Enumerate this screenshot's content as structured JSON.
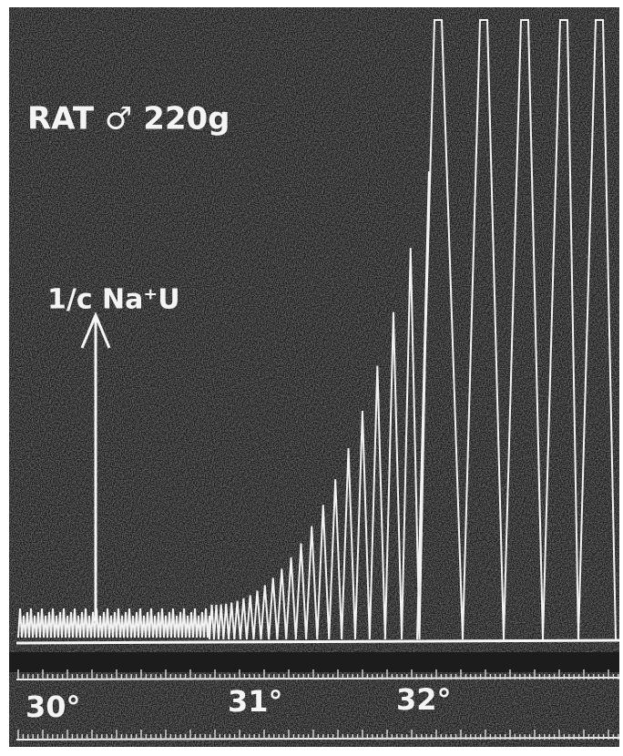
{
  "annotations": {
    "subject": "RAT ♂ 220g",
    "injection": "1/c Na⁺U"
  },
  "scale": {
    "labels": [
      "30°",
      "31°",
      "32°"
    ]
  }
}
